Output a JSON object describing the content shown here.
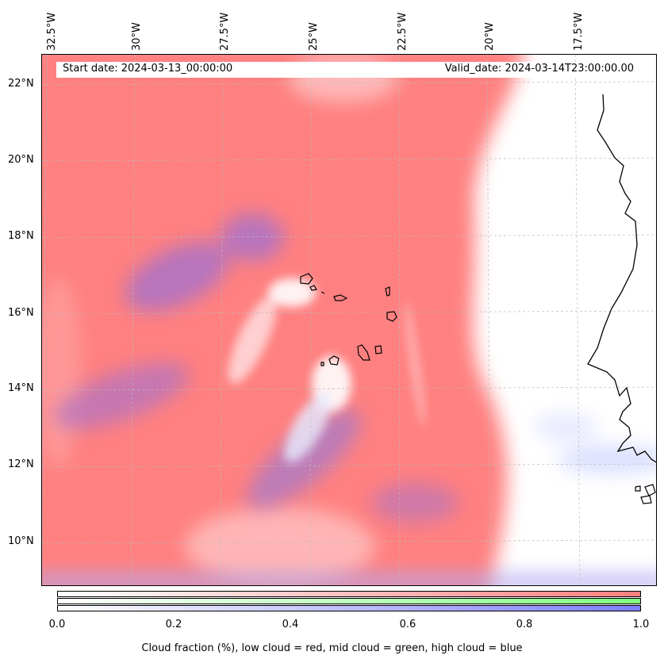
{
  "map": {
    "start_date": "Start date: 2024-03-13_00:00:00",
    "valid_date": "Valid_date: 2024-03-14T23:00:00.00",
    "lon_labels": [
      "32.5°W",
      "30°W",
      "27.5°W",
      "25°W",
      "22.5°W",
      "20°W",
      "17.5°W"
    ],
    "lat_labels": [
      "22°N",
      "20°N",
      "18°N",
      "16°N",
      "14°N",
      "12°N",
      "10°N"
    ],
    "field": "cloud fraction",
    "colors": {
      "low": "#ff7f7f",
      "mid": "#7fff7f",
      "high": "#7f7fff",
      "coast": "#000000",
      "grid": "#bbbbbb"
    }
  },
  "colorbar": {
    "ticks": [
      "0.0",
      "0.2",
      "0.4",
      "0.6",
      "0.8",
      "1.0"
    ],
    "label": "Cloud fraction (%), low cloud = red, mid cloud = green, high cloud = blue",
    "range": [
      0,
      1
    ]
  }
}
